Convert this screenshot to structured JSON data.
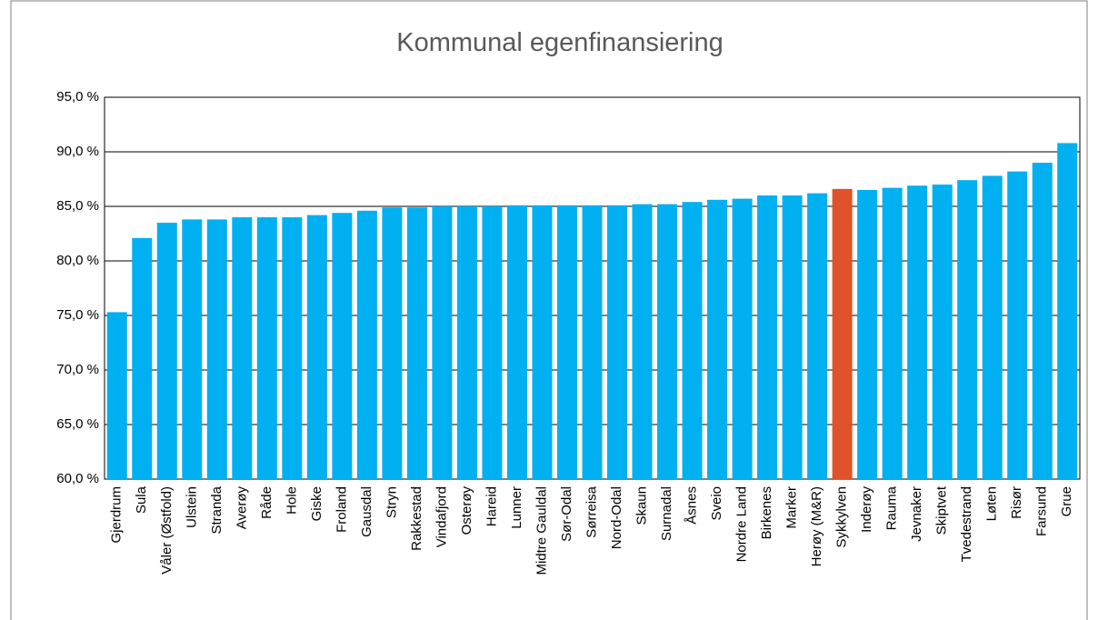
{
  "chart_data": {
    "type": "bar",
    "title": "Kommunal egenfinansiering",
    "categories": [
      "Gjerdrum",
      "Sula",
      "Våler (Østfold)",
      "Ulstein",
      "Stranda",
      "Averøy",
      "Råde",
      "Hole",
      "Giske",
      "Froland",
      "Gausdal",
      "Stryn",
      "Rakkestad",
      "Vindafjord",
      "Osterøy",
      "Hareid",
      "Lunner",
      "Midtre Gauldal",
      "Sør-Odal",
      "Sørreisa",
      "Nord-Odal",
      "Skaun",
      "Surnadal",
      "Åsnes",
      "Sveio",
      "Nordre Land",
      "Birkenes",
      "Marker",
      "Herøy (M&R)",
      "Sykkylven",
      "Inderøy",
      "Rauma",
      "Jevnaker",
      "Skiptvet",
      "Tvedestrand",
      "Løten",
      "Risør",
      "Farsund",
      "Grue"
    ],
    "values": [
      75.3,
      82.1,
      83.5,
      83.8,
      83.8,
      84.0,
      84.0,
      84.0,
      84.2,
      84.4,
      84.6,
      84.9,
      84.9,
      85.0,
      85.0,
      85.0,
      85.1,
      85.1,
      85.1,
      85.1,
      85.1,
      85.2,
      85.2,
      85.4,
      85.6,
      85.7,
      86.0,
      86.0,
      86.2,
      86.6,
      86.5,
      86.7,
      86.9,
      87.0,
      87.4,
      87.8,
      88.2,
      89.0,
      90.8
    ],
    "colors": [
      "#00b0f0",
      "#00b0f0",
      "#00b0f0",
      "#00b0f0",
      "#00b0f0",
      "#00b0f0",
      "#00b0f0",
      "#00b0f0",
      "#00b0f0",
      "#00b0f0",
      "#00b0f0",
      "#00b0f0",
      "#00b0f0",
      "#00b0f0",
      "#00b0f0",
      "#00b0f0",
      "#00b0f0",
      "#00b0f0",
      "#00b0f0",
      "#00b0f0",
      "#00b0f0",
      "#00b0f0",
      "#00b0f0",
      "#00b0f0",
      "#00b0f0",
      "#00b0f0",
      "#00b0f0",
      "#00b0f0",
      "#00b0f0",
      "#e0522a",
      "#00b0f0",
      "#00b0f0",
      "#00b0f0",
      "#00b0f0",
      "#00b0f0",
      "#00b0f0",
      "#00b0f0",
      "#00b0f0",
      "#00b0f0"
    ],
    "ylim": [
      60,
      95
    ],
    "yticks": [
      {
        "value": 60,
        "label": "60,0 %"
      },
      {
        "value": 65,
        "label": "65,0 %"
      },
      {
        "value": 70,
        "label": "70,0 %"
      },
      {
        "value": 75,
        "label": "75,0 %"
      },
      {
        "value": 80,
        "label": "80,0 %"
      },
      {
        "value": 85,
        "label": "85,0 %"
      },
      {
        "value": 90,
        "label": "90,0 %"
      },
      {
        "value": 95,
        "label": "95,0 %"
      }
    ],
    "grid": true
  }
}
